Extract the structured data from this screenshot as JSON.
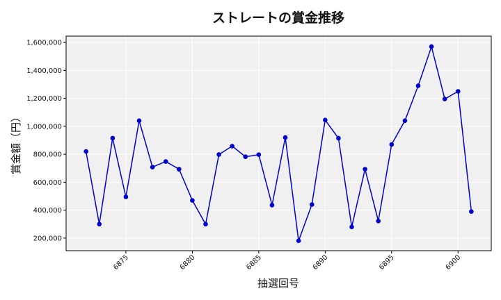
{
  "chart_data": {
    "type": "line",
    "title": "ストレートの賞金推移",
    "xlabel": "抽選回号",
    "ylabel": "賞金額（円）",
    "x": [
      6872,
      6873,
      6874,
      6875,
      6876,
      6877,
      6878,
      6879,
      6880,
      6881,
      6882,
      6883,
      6884,
      6885,
      6886,
      6887,
      6888,
      6889,
      6890,
      6891,
      6892,
      6893,
      6894,
      6895,
      6896,
      6897,
      6898,
      6899,
      6900,
      6901
    ],
    "series": [
      {
        "values": [
          820000,
          300000,
          915000,
          495000,
          1040000,
          708000,
          748000,
          693000,
          470000,
          300000,
          798000,
          858000,
          782000,
          797000,
          436000,
          920000,
          181000,
          440000,
          1045000,
          915000,
          280000,
          693000,
          322000,
          870000,
          1040000,
          1290000,
          1570000,
          1195000,
          1250000,
          390000
        ],
        "color": "#0000cc"
      }
    ],
    "xlim": [
      6870.5,
      6902.5
    ],
    "ylim": [
      110000,
      1645000
    ],
    "xticks": [
      6875,
      6880,
      6885,
      6890,
      6895,
      6900
    ],
    "yticks": [
      200000,
      400000,
      600000,
      800000,
      1000000,
      1200000,
      1400000,
      1600000
    ],
    "ytick_labels": [
      "200,000",
      "400,000",
      "600,000",
      "800,000",
      "1,000,000",
      "1,200,000",
      "1,400,000",
      "1,600,000"
    ],
    "grid": true,
    "background": "#f0f0f0"
  }
}
